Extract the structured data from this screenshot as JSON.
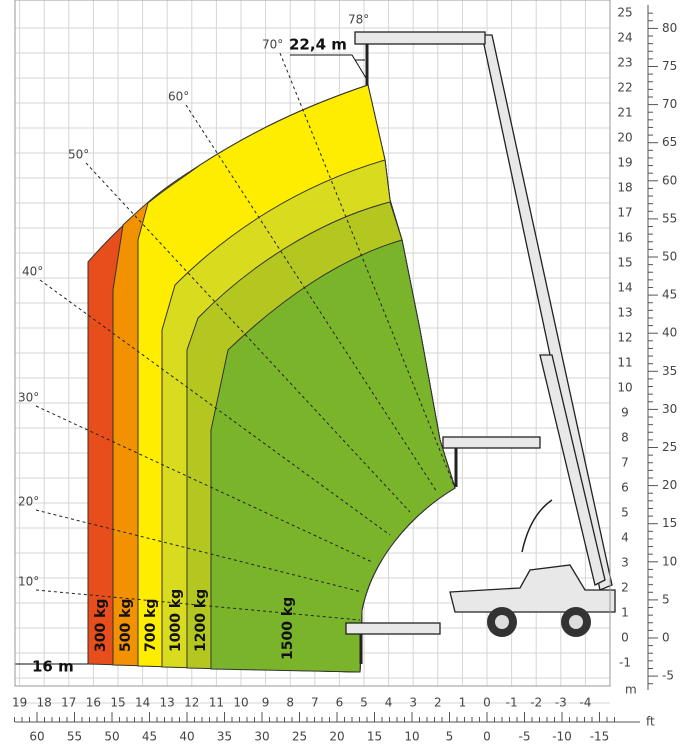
{
  "angles": [
    "78°",
    "70°",
    "60°",
    "50°",
    "40°",
    "30°",
    "20°",
    "10°"
  ],
  "max_height": "22,4 m",
  "min_reach": "16 m",
  "zones": [
    "300 kg",
    "500 kg",
    "700 kg",
    "1000 kg",
    "1200 kg",
    "1500 kg"
  ],
  "axes": {
    "x_m": [
      "19",
      "18",
      "17",
      "16",
      "15",
      "14",
      "13",
      "12",
      "11",
      "10",
      "9",
      "8",
      "7",
      "6",
      "5",
      "4",
      "3",
      "2",
      "1",
      "0",
      "-1",
      "-2",
      "-3",
      "-4"
    ],
    "x_ft": [
      "60",
      "55",
      "50",
      "45",
      "40",
      "35",
      "30",
      "25",
      "20",
      "15",
      "10",
      "5",
      "0",
      "-5",
      "-10",
      "-15"
    ],
    "y_m": [
      "25",
      "24",
      "23",
      "22",
      "21",
      "20",
      "19",
      "18",
      "17",
      "16",
      "15",
      "14",
      "13",
      "12",
      "11",
      "10",
      "9",
      "8",
      "7",
      "6",
      "5",
      "4",
      "3",
      "2",
      "1",
      "0",
      "-1"
    ],
    "y_ft": [
      "80",
      "75",
      "70",
      "65",
      "60",
      "55",
      "50",
      "45",
      "40",
      "35",
      "30",
      "25",
      "20",
      "15",
      "10",
      "5",
      "0",
      "-5"
    ],
    "m_unit": "m",
    "ft_unit": "ft"
  }
}
